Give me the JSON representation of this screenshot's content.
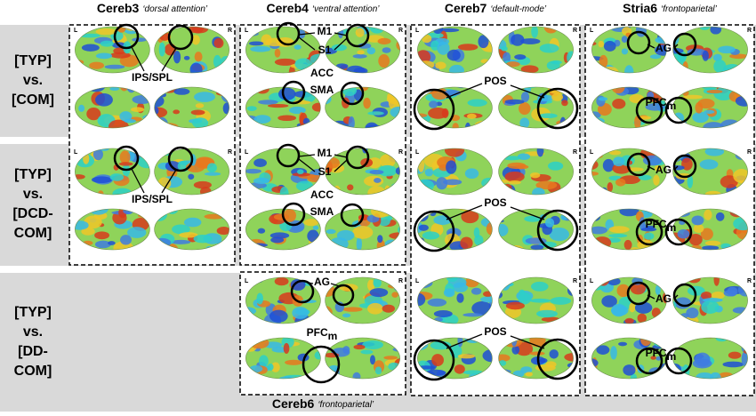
{
  "columns": [
    {
      "name": "Cereb3",
      "network": "‘dorsal attention’"
    },
    {
      "name": "Cereb4",
      "network": "‘ventral attention’"
    },
    {
      "name": "Cereb7",
      "network": "‘default-mode’"
    },
    {
      "name": "Stria6",
      "network": "‘frontoparietal’"
    }
  ],
  "bottom_label": {
    "name": "Cereb6",
    "network": "‘frontoparietal’"
  },
  "rows": [
    {
      "lines": [
        "[TYP]",
        "vs.",
        "[COM]"
      ]
    },
    {
      "lines": [
        "[TYP]",
        "vs.",
        "[DCD-",
        "COM]"
      ]
    },
    {
      "lines": [
        "[TYP]",
        "vs.",
        "[DD-",
        "COM]"
      ]
    }
  ],
  "hemisphere_labels": [
    "L",
    "R"
  ],
  "regions": {
    "ips_spl": "IPS/SPL",
    "m1": "M1",
    "s1": "S1",
    "acc": "ACC",
    "sma": "SMA",
    "pos": "POS",
    "ag": "AG",
    "pfc": {
      "base": "PFC",
      "sub": "m"
    }
  }
}
